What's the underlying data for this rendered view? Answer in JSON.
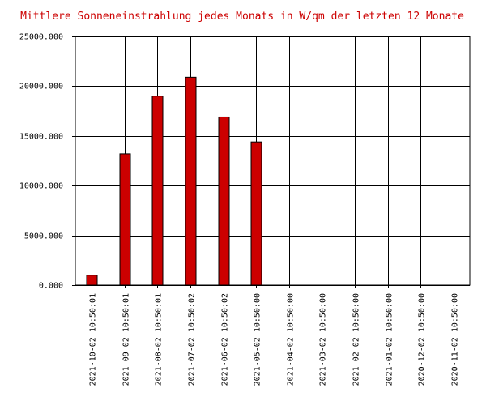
{
  "chart_data": {
    "type": "bar",
    "title": "Mittlere Sonneneinstrahlung jedes Monats in W/qm der letzten 12 Monate",
    "categories": [
      "2021-10-02 10:50:01",
      "2021-09-02 10:50:01",
      "2021-08-02 10:50:01",
      "2021-07-02 10:50:02",
      "2021-06-02 10:50:02",
      "2021-05-02 10:50:00",
      "2021-04-02 10:50:00",
      "2021-03-02 10:50:00",
      "2021-02-02 10:50:00",
      "2021-01-02 10:50:00",
      "2020-12-02 10:50:00",
      "2020-11-02 10:50:00"
    ],
    "values": [
      1000,
      13200,
      19000,
      20900,
      16900,
      14400,
      0,
      0,
      0,
      0,
      0,
      0
    ],
    "color": "#cc0000",
    "ylim": [
      0,
      25000
    ],
    "yticks": [
      {
        "value": 0,
        "label": "0.000"
      },
      {
        "value": 5000,
        "label": "5000.000"
      },
      {
        "value": 10000,
        "label": "10000.000"
      },
      {
        "value": 15000,
        "label": "15000.000"
      },
      {
        "value": 20000,
        "label": "20000.000"
      },
      {
        "value": 25000,
        "label": "25000.000"
      }
    ],
    "grid": true
  }
}
